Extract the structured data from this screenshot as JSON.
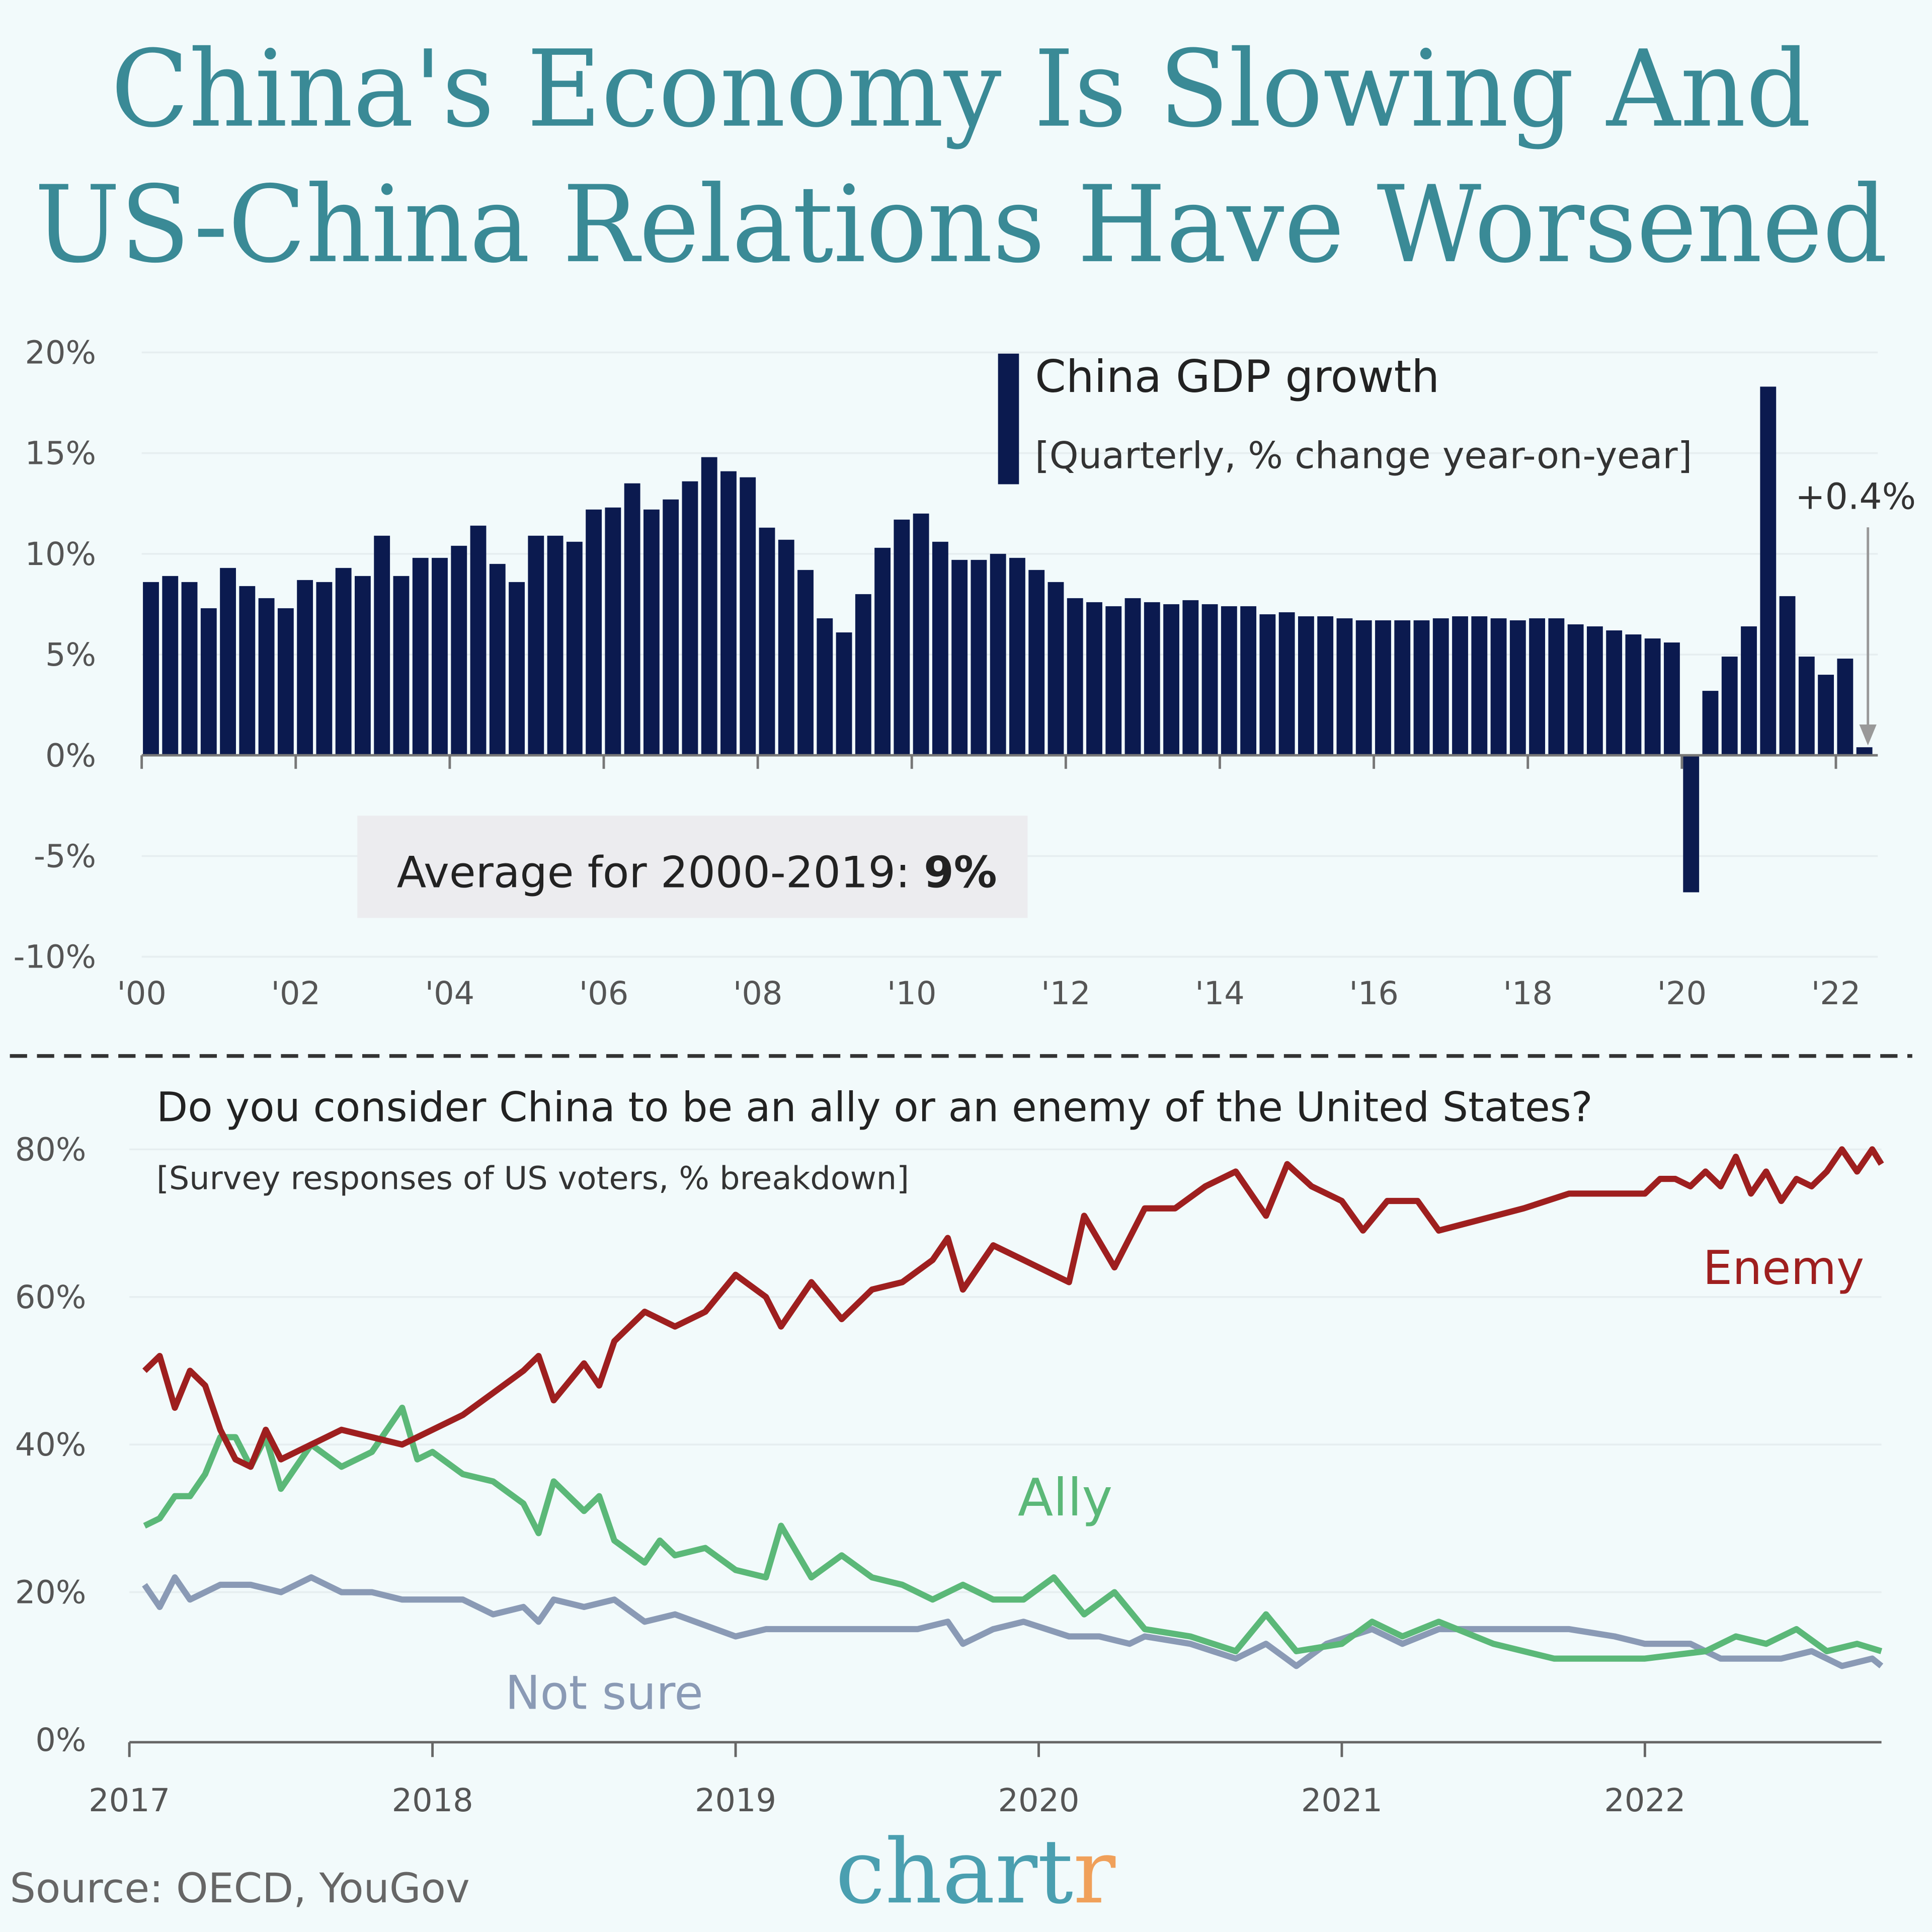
{
  "title": {
    "line1": "China's Economy Is Slowing And",
    "line2": "US-China Relations Have Worsened"
  },
  "colors": {
    "background": "#f2fafb",
    "title": "#3a8a96",
    "bars": "#0b1a4f",
    "enemy": "#9e1f1f",
    "ally": "#5bb878",
    "not_sure": "#8a9ab5",
    "logo_main": "#4a9fb0",
    "logo_accent": "#f0a05a"
  },
  "source": "Source: OECD, YouGov",
  "logo": {
    "main": "chart",
    "accent": "r"
  },
  "chart_data": [
    {
      "type": "bar",
      "title": "China GDP growth",
      "subtitle": "[Quarterly, % change year-on-year]",
      "ylim": [
        -10,
        20
      ],
      "yticks": [
        "20%",
        "15%",
        "10%",
        "5%",
        "0%",
        "-5%",
        "-10%"
      ],
      "ytick_values": [
        20,
        15,
        10,
        5,
        0,
        -5,
        -10
      ],
      "xticks": [
        "'00",
        "'02",
        "'04",
        "'06",
        "'08",
        "'10",
        "'12",
        "'14",
        "'16",
        "'18",
        "'20",
        "'22"
      ],
      "grid": true,
      "legend": "top-center",
      "start_quarter": "2000 Q1",
      "values": [
        8.6,
        8.9,
        8.6,
        7.3,
        9.3,
        8.4,
        7.8,
        7.3,
        8.7,
        8.6,
        9.3,
        8.9,
        10.9,
        8.9,
        9.8,
        9.8,
        10.4,
        11.4,
        9.5,
        8.6,
        10.9,
        10.9,
        10.6,
        12.2,
        12.3,
        13.5,
        12.2,
        12.7,
        13.6,
        14.8,
        14.1,
        13.8,
        11.3,
        10.7,
        9.2,
        6.8,
        6.1,
        8.0,
        10.3,
        11.7,
        12.0,
        10.6,
        9.7,
        9.7,
        10.0,
        9.8,
        9.2,
        8.6,
        7.8,
        7.6,
        7.4,
        7.8,
        7.6,
        7.5,
        7.7,
        7.5,
        7.4,
        7.4,
        7.0,
        7.1,
        6.9,
        6.9,
        6.8,
        6.7,
        6.7,
        6.7,
        6.7,
        6.8,
        6.9,
        6.9,
        6.8,
        6.7,
        6.8,
        6.8,
        6.5,
        6.4,
        6.2,
        6.0,
        5.8,
        5.6,
        -6.8,
        3.2,
        4.9,
        6.4,
        18.3,
        7.9,
        4.9,
        4.0,
        4.8,
        0.4
      ],
      "annotations": {
        "last_value": "+0.4%",
        "average_prefix": "Average for 2000-2019: ",
        "average_value": "9%"
      }
    },
    {
      "type": "line",
      "title": "Do you consider China to be an ally or an enemy of the United States?",
      "subtitle": "[Survey responses of US voters, % breakdown]",
      "ylim": [
        0,
        80
      ],
      "yticks": [
        "80%",
        "60%",
        "40%",
        "20%",
        "0%"
      ],
      "ytick_values": [
        80,
        60,
        40,
        20,
        0
      ],
      "xticks": [
        "2017",
        "2018",
        "2019",
        "2020",
        "2021",
        "2022"
      ],
      "xtick_values": [
        2017,
        2018,
        2019,
        2020,
        2021,
        2022
      ],
      "grid": true,
      "series": [
        {
          "name": "Enemy",
          "color": "#9e1f1f",
          "points": [
            [
              2017.05,
              50
            ],
            [
              2017.1,
              52
            ],
            [
              2017.15,
              45
            ],
            [
              2017.2,
              50
            ],
            [
              2017.25,
              48
            ],
            [
              2017.3,
              42
            ],
            [
              2017.35,
              38
            ],
            [
              2017.4,
              37
            ],
            [
              2017.45,
              42
            ],
            [
              2017.5,
              38
            ],
            [
              2017.6,
              40
            ],
            [
              2017.7,
              42
            ],
            [
              2017.8,
              41
            ],
            [
              2017.9,
              40
            ],
            [
              2018.0,
              42
            ],
            [
              2018.1,
              44
            ],
            [
              2018.2,
              47
            ],
            [
              2018.3,
              50
            ],
            [
              2018.35,
              52
            ],
            [
              2018.4,
              46
            ],
            [
              2018.5,
              51
            ],
            [
              2018.55,
              48
            ],
            [
              2018.6,
              54
            ],
            [
              2018.7,
              58
            ],
            [
              2018.8,
              56
            ],
            [
              2018.9,
              58
            ],
            [
              2019.0,
              63
            ],
            [
              2019.1,
              60
            ],
            [
              2019.15,
              56
            ],
            [
              2019.25,
              62
            ],
            [
              2019.35,
              57
            ],
            [
              2019.45,
              61
            ],
            [
              2019.55,
              62
            ],
            [
              2019.65,
              65
            ],
            [
              2019.7,
              68
            ],
            [
              2019.75,
              61
            ],
            [
              2019.85,
              67
            ],
            [
              2019.95,
              65
            ],
            [
              2020.1,
              62
            ],
            [
              2020.15,
              71
            ],
            [
              2020.25,
              64
            ],
            [
              2020.35,
              72
            ],
            [
              2020.45,
              72
            ],
            [
              2020.55,
              75
            ],
            [
              2020.65,
              77
            ],
            [
              2020.75,
              71
            ],
            [
              2020.82,
              78
            ],
            [
              2020.9,
              75
            ],
            [
              2021.0,
              73
            ],
            [
              2021.07,
              69
            ],
            [
              2021.15,
              73
            ],
            [
              2021.25,
              73
            ],
            [
              2021.32,
              69
            ],
            [
              2021.6,
              72
            ],
            [
              2021.75,
              74
            ],
            [
              2021.9,
              74
            ],
            [
              2022.0,
              74
            ],
            [
              2022.05,
              76
            ],
            [
              2022.1,
              76
            ],
            [
              2022.15,
              75
            ],
            [
              2022.2,
              77
            ],
            [
              2022.25,
              75
            ],
            [
              2022.3,
              79
            ],
            [
              2022.35,
              74
            ],
            [
              2022.4,
              77
            ],
            [
              2022.45,
              73
            ],
            [
              2022.5,
              76
            ],
            [
              2022.55,
              75
            ],
            [
              2022.6,
              77
            ],
            [
              2022.65,
              80
            ],
            [
              2022.7,
              77
            ],
            [
              2022.75,
              80
            ],
            [
              2022.78,
              78
            ]
          ]
        },
        {
          "name": "Ally",
          "color": "#5bb878",
          "points": [
            [
              2017.05,
              29
            ],
            [
              2017.1,
              30
            ],
            [
              2017.15,
              33
            ],
            [
              2017.2,
              33
            ],
            [
              2017.25,
              36
            ],
            [
              2017.3,
              41
            ],
            [
              2017.35,
              41
            ],
            [
              2017.4,
              37
            ],
            [
              2017.45,
              41
            ],
            [
              2017.5,
              34
            ],
            [
              2017.6,
              40
            ],
            [
              2017.7,
              37
            ],
            [
              2017.8,
              39
            ],
            [
              2017.9,
              45
            ],
            [
              2017.95,
              38
            ],
            [
              2018.0,
              39
            ],
            [
              2018.1,
              36
            ],
            [
              2018.2,
              35
            ],
            [
              2018.3,
              32
            ],
            [
              2018.35,
              28
            ],
            [
              2018.4,
              35
            ],
            [
              2018.5,
              31
            ],
            [
              2018.55,
              33
            ],
            [
              2018.6,
              27
            ],
            [
              2018.7,
              24
            ],
            [
              2018.75,
              27
            ],
            [
              2018.8,
              25
            ],
            [
              2018.9,
              26
            ],
            [
              2019.0,
              23
            ],
            [
              2019.1,
              22
            ],
            [
              2019.15,
              29
            ],
            [
              2019.25,
              22
            ],
            [
              2019.35,
              25
            ],
            [
              2019.45,
              22
            ],
            [
              2019.55,
              21
            ],
            [
              2019.65,
              19
            ],
            [
              2019.75,
              21
            ],
            [
              2019.85,
              19
            ],
            [
              2019.95,
              19
            ],
            [
              2020.05,
              22
            ],
            [
              2020.15,
              17
            ],
            [
              2020.25,
              20
            ],
            [
              2020.35,
              15
            ],
            [
              2020.5,
              14
            ],
            [
              2020.65,
              12
            ],
            [
              2020.75,
              17
            ],
            [
              2020.85,
              12
            ],
            [
              2021.0,
              13
            ],
            [
              2021.1,
              16
            ],
            [
              2021.2,
              14
            ],
            [
              2021.32,
              16
            ],
            [
              2021.5,
              13
            ],
            [
              2021.7,
              11
            ],
            [
              2021.9,
              11
            ],
            [
              2022.0,
              11
            ],
            [
              2022.2,
              12
            ],
            [
              2022.3,
              14
            ],
            [
              2022.4,
              13
            ],
            [
              2022.5,
              15
            ],
            [
              2022.6,
              12
            ],
            [
              2022.7,
              13
            ],
            [
              2022.78,
              12
            ]
          ]
        },
        {
          "name": "Not sure",
          "color": "#8a9ab5",
          "points": [
            [
              2017.05,
              21
            ],
            [
              2017.1,
              18
            ],
            [
              2017.15,
              22
            ],
            [
              2017.2,
              19
            ],
            [
              2017.3,
              21
            ],
            [
              2017.4,
              21
            ],
            [
              2017.5,
              20
            ],
            [
              2017.6,
              22
            ],
            [
              2017.7,
              20
            ],
            [
              2017.8,
              20
            ],
            [
              2017.9,
              19
            ],
            [
              2018.0,
              19
            ],
            [
              2018.1,
              19
            ],
            [
              2018.2,
              17
            ],
            [
              2018.3,
              18
            ],
            [
              2018.35,
              16
            ],
            [
              2018.4,
              19
            ],
            [
              2018.5,
              18
            ],
            [
              2018.6,
              19
            ],
            [
              2018.7,
              16
            ],
            [
              2018.8,
              17
            ],
            [
              2019.0,
              14
            ],
            [
              2019.1,
              15
            ],
            [
              2019.2,
              15
            ],
            [
              2019.35,
              15
            ],
            [
              2019.5,
              15
            ],
            [
              2019.6,
              15
            ],
            [
              2019.7,
              16
            ],
            [
              2019.75,
              13
            ],
            [
              2019.85,
              15
            ],
            [
              2019.95,
              16
            ],
            [
              2020.1,
              14
            ],
            [
              2020.2,
              14
            ],
            [
              2020.3,
              13
            ],
            [
              2020.35,
              14
            ],
            [
              2020.5,
              13
            ],
            [
              2020.65,
              11
            ],
            [
              2020.75,
              13
            ],
            [
              2020.85,
              10
            ],
            [
              2020.95,
              13
            ],
            [
              2021.1,
              15
            ],
            [
              2021.2,
              13
            ],
            [
              2021.32,
              15
            ],
            [
              2021.5,
              15
            ],
            [
              2021.75,
              15
            ],
            [
              2021.9,
              14
            ],
            [
              2022.0,
              13
            ],
            [
              2022.15,
              13
            ],
            [
              2022.25,
              11
            ],
            [
              2022.35,
              11
            ],
            [
              2022.45,
              11
            ],
            [
              2022.55,
              12
            ],
            [
              2022.65,
              10
            ],
            [
              2022.75,
              11
            ],
            [
              2022.78,
              10
            ]
          ]
        }
      ]
    }
  ]
}
